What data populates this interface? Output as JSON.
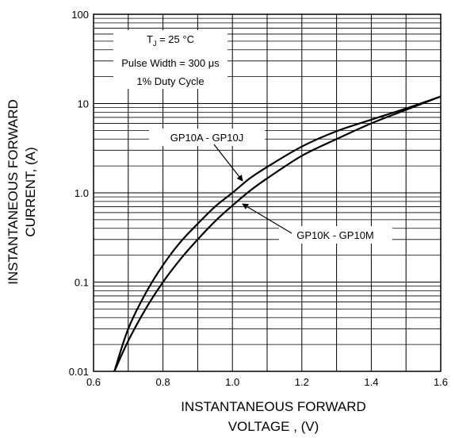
{
  "chart_data": {
    "type": "line",
    "x_scale": "linear",
    "y_scale": "log",
    "xlim": [
      0.6,
      1.6
    ],
    "ylim": [
      0.01,
      100
    ],
    "grid": true,
    "xlabel_lines": [
      "INSTANTANEOUS FORWARD",
      "VOLTAGE , (V)"
    ],
    "ylabel_lines": [
      "INSTANTANEOUS FORWARD",
      "CURRENT,  (A)"
    ],
    "x_ticks": [
      {
        "value": 0.6,
        "label": "0.6"
      },
      {
        "value": 0.8,
        "label": "0.8"
      },
      {
        "value": 1.0,
        "label": "1.0"
      },
      {
        "value": 1.2,
        "label": "1.2"
      },
      {
        "value": 1.4,
        "label": "1.4"
      },
      {
        "value": 1.6,
        "label": "1.6"
      }
    ],
    "y_ticks": [
      {
        "value": 0.01,
        "label": "0.01"
      },
      {
        "value": 0.1,
        "label": "0.1"
      },
      {
        "value": 1.0,
        "label": "1.0"
      },
      {
        "value": 10,
        "label": "10"
      },
      {
        "value": 100,
        "label": "100"
      }
    ],
    "conditions": {
      "tj_prefix": "T",
      "tj_subscript": "J",
      "tj_suffix": " = 25 °C",
      "pulse_width": "Pulse Width  = 300 μs",
      "duty_cycle": "1% Duty Cycle"
    },
    "series": [
      {
        "name": "GP10A - GP10J",
        "x": [
          0.66,
          0.7,
          0.75,
          0.8,
          0.85,
          0.9,
          0.95,
          1.0,
          1.05,
          1.1,
          1.2,
          1.3,
          1.4,
          1.5,
          1.6
        ],
        "y": [
          0.01,
          0.03,
          0.075,
          0.155,
          0.28,
          0.45,
          0.7,
          1.0,
          1.45,
          1.95,
          3.3,
          4.9,
          6.6,
          8.8,
          12
        ]
      },
      {
        "name": "GP10K - GP10M",
        "x": [
          0.66,
          0.7,
          0.75,
          0.8,
          0.85,
          0.9,
          0.95,
          1.0,
          1.05,
          1.1,
          1.2,
          1.3,
          1.4,
          1.5,
          1.6
        ],
        "y": [
          0.01,
          0.022,
          0.05,
          0.1,
          0.18,
          0.3,
          0.48,
          0.72,
          1.05,
          1.45,
          2.6,
          4.0,
          6.0,
          8.5,
          12
        ]
      }
    ]
  }
}
